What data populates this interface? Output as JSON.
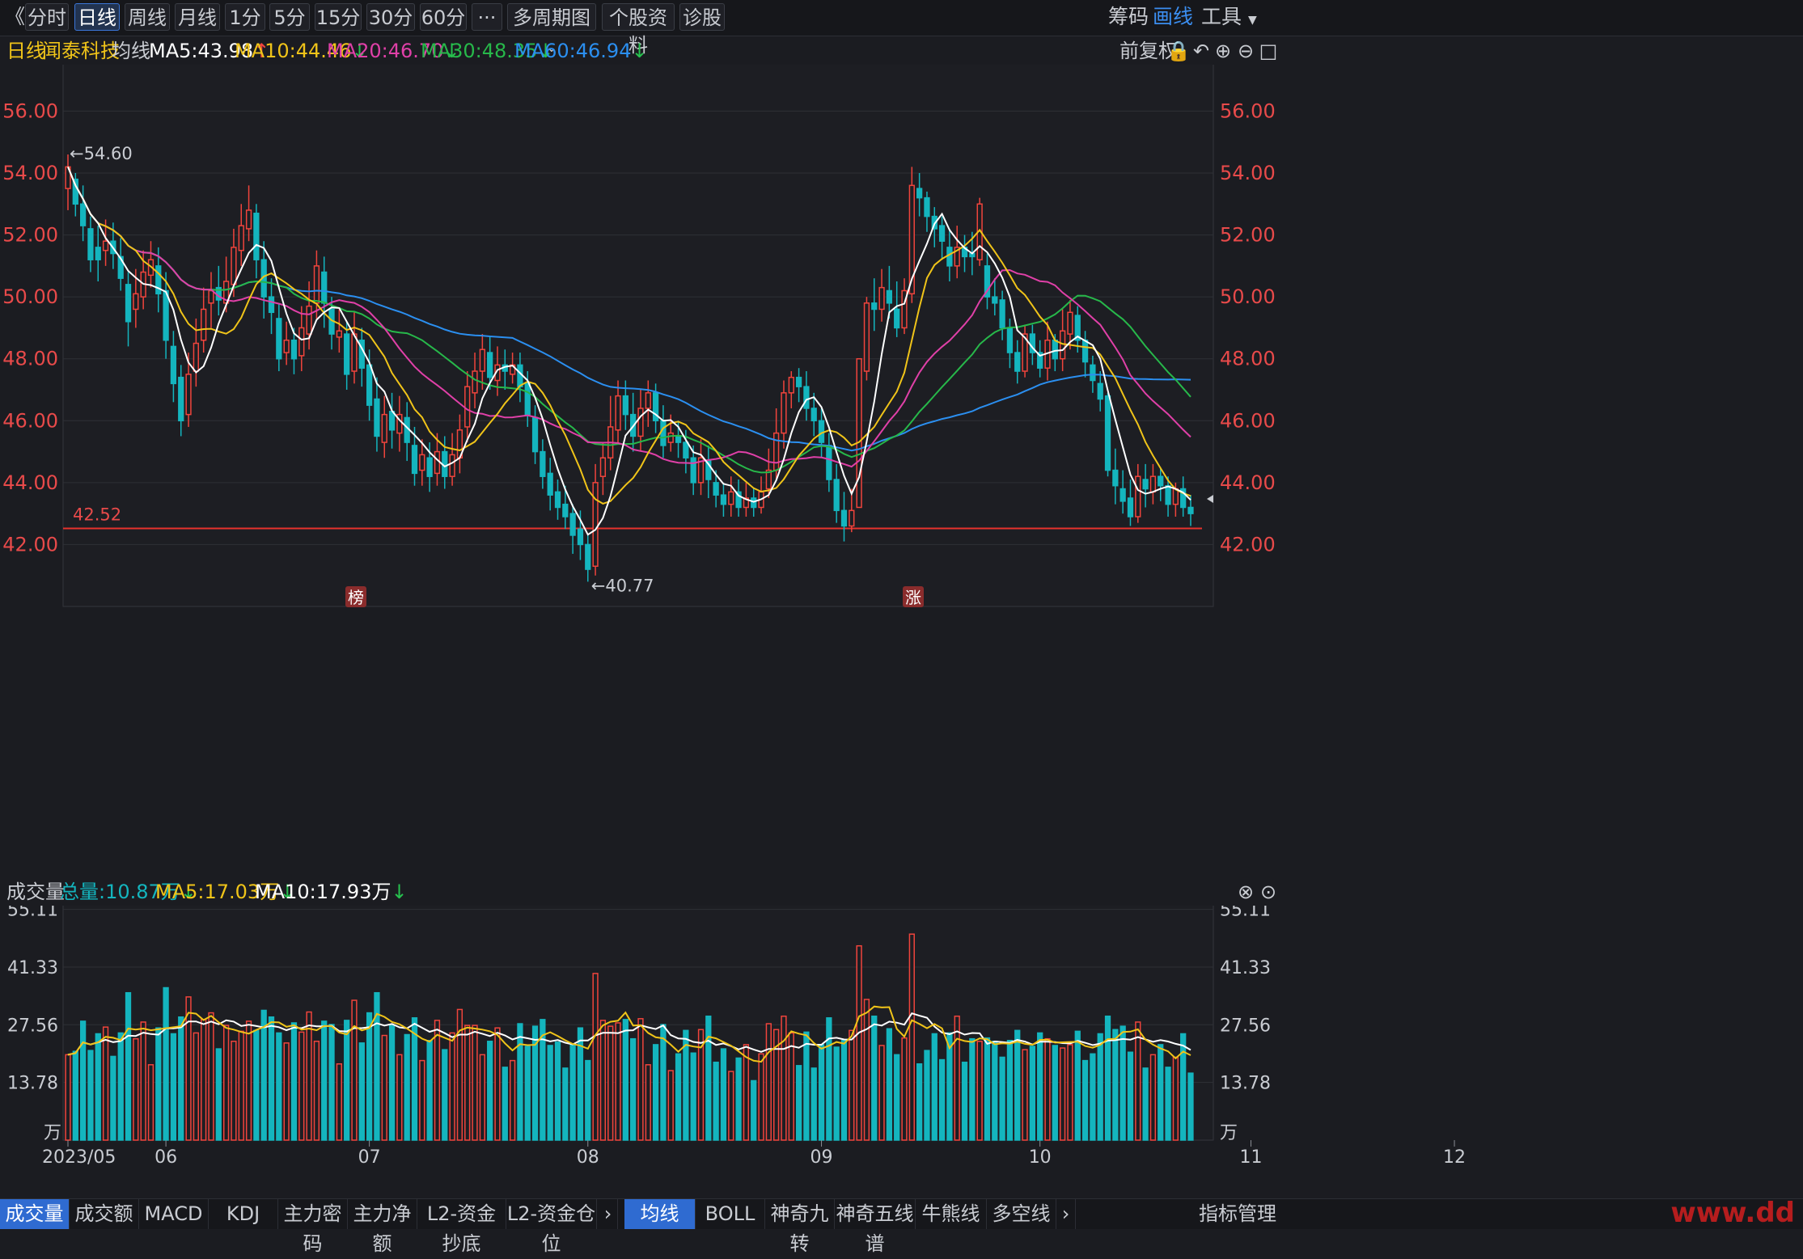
{
  "toolbar": {
    "back_glyph": "《",
    "periods": [
      "分时",
      "日线",
      "周线",
      "月线",
      "1分",
      "5分",
      "15分",
      "30分",
      "60分"
    ],
    "active_period": "日线",
    "more_glyph": "···",
    "multi_period": "多周期图",
    "stock_info": "个股资料",
    "diagnose": "诊股",
    "chips": "筹码",
    "draw": "画线",
    "tools": "工具"
  },
  "info": {
    "period": "日线",
    "stock_name": "闻泰科技",
    "ma_label": "均线",
    "ma5": "MA5:43.98",
    "ma10": "MA10:44.46",
    "ma20": "MA20:46.70",
    "ma30": "MA30:48.35",
    "ma60": "MA60:46.94",
    "adjust": "前复权"
  },
  "colors": {
    "up": "#f0443c",
    "down": "#14b5be",
    "ma5": "#ffffff",
    "ma10": "#f0c419",
    "ma20": "#e040a8",
    "ma30": "#27b84a",
    "ma60": "#2b8ff0",
    "grid": "#2e3036",
    "axis": "#e84a4a"
  },
  "chart_data": {
    "type": "candlestick",
    "ylim": [
      40,
      57.5
    ],
    "y_ticks": [
      "56.00",
      "54.00",
      "52.00",
      "50.00",
      "48.00",
      "46.00",
      "44.00",
      "42.00"
    ],
    "x_ticks": [
      "2023/05",
      "06",
      "07",
      "08",
      "09",
      "10",
      "11",
      "12"
    ],
    "annotations": {
      "high": "←54.60",
      "low": "←40.77",
      "support_label": "42.52",
      "support_value": 42.52,
      "tag_list": "榜",
      "tag_limit": "涨"
    },
    "candles": [
      [
        53.5,
        54.2,
        54.6,
        52.8
      ],
      [
        53.8,
        53.0,
        54.0,
        52.6
      ],
      [
        53.0,
        52.3,
        53.6,
        51.8
      ],
      [
        52.2,
        51.2,
        52.6,
        50.8
      ],
      [
        51.6,
        51.2,
        52.3,
        50.5
      ],
      [
        51.5,
        51.8,
        52.5,
        51.0
      ],
      [
        51.8,
        51.4,
        52.4,
        50.9
      ],
      [
        51.3,
        50.6,
        51.9,
        50.2
      ],
      [
        50.4,
        49.2,
        50.8,
        48.4
      ],
      [
        49.6,
        50.1,
        50.9,
        49.0
      ],
      [
        50.0,
        50.8,
        51.5,
        49.6
      ],
      [
        50.7,
        51.2,
        51.8,
        50.3
      ],
      [
        51.0,
        50.1,
        51.6,
        49.5
      ],
      [
        50.2,
        48.6,
        50.8,
        48.0
      ],
      [
        48.4,
        47.2,
        48.9,
        46.6
      ],
      [
        47.4,
        46.0,
        47.8,
        45.5
      ],
      [
        46.2,
        47.5,
        48.2,
        45.8
      ],
      [
        47.6,
        48.5,
        49.3,
        47.1
      ],
      [
        48.6,
        49.6,
        50.3,
        48.2
      ],
      [
        49.8,
        50.2,
        50.8,
        49.0
      ],
      [
        50.3,
        49.9,
        51.0,
        49.4
      ],
      [
        49.8,
        50.5,
        51.3,
        49.5
      ],
      [
        50.4,
        51.6,
        52.2,
        50.0
      ],
      [
        51.5,
        52.3,
        53.0,
        51.0
      ],
      [
        52.2,
        52.8,
        53.6,
        51.8
      ],
      [
        52.7,
        51.2,
        53.0,
        50.6
      ],
      [
        51.2,
        50.0,
        51.8,
        49.3
      ],
      [
        50.0,
        49.5,
        50.6,
        48.8
      ],
      [
        49.3,
        48.0,
        49.8,
        47.6
      ],
      [
        48.2,
        48.6,
        49.2,
        47.8
      ],
      [
        48.6,
        48.0,
        49.0,
        47.5
      ],
      [
        48.1,
        49.0,
        49.7,
        47.6
      ],
      [
        48.8,
        49.7,
        50.5,
        48.3
      ],
      [
        49.8,
        51.0,
        51.5,
        49.3
      ],
      [
        50.8,
        49.8,
        51.3,
        49.0
      ],
      [
        49.6,
        48.8,
        50.0,
        48.3
      ],
      [
        48.7,
        48.9,
        49.6,
        48.2
      ],
      [
        48.8,
        47.5,
        49.2,
        47.0
      ],
      [
        47.6,
        48.8,
        49.5,
        47.2
      ],
      [
        48.6,
        47.7,
        49.0,
        47.1
      ],
      [
        47.8,
        46.5,
        48.3,
        46.0
      ],
      [
        46.7,
        45.5,
        47.4,
        45.0
      ],
      [
        45.3,
        46.2,
        46.8,
        44.8
      ],
      [
        46.3,
        45.7,
        46.9,
        45.1
      ],
      [
        45.6,
        46.2,
        46.8,
        45.0
      ],
      [
        46.1,
        45.3,
        46.6,
        44.7
      ],
      [
        45.2,
        44.3,
        45.8,
        43.9
      ],
      [
        44.4,
        44.9,
        45.4,
        43.9
      ],
      [
        44.8,
        44.2,
        45.3,
        43.7
      ],
      [
        44.3,
        45.0,
        45.6,
        43.9
      ],
      [
        45.0,
        44.2,
        45.5,
        43.8
      ],
      [
        44.2,
        44.9,
        45.6,
        43.9
      ],
      [
        44.8,
        45.7,
        46.2,
        44.3
      ],
      [
        45.8,
        47.1,
        47.6,
        45.3
      ],
      [
        46.9,
        47.6,
        48.2,
        46.4
      ],
      [
        47.6,
        48.3,
        48.8,
        47.0
      ],
      [
        48.2,
        47.4,
        48.7,
        47.0
      ],
      [
        47.3,
        47.8,
        48.4,
        46.8
      ],
      [
        47.8,
        47.6,
        48.3,
        47.0
      ],
      [
        47.5,
        47.8,
        48.2,
        47.2
      ],
      [
        47.8,
        47.1,
        48.2,
        46.6
      ],
      [
        47.2,
        46.2,
        47.6,
        45.8
      ],
      [
        46.1,
        45.0,
        46.5,
        44.6
      ],
      [
        45.0,
        44.2,
        45.4,
        43.8
      ],
      [
        44.3,
        43.6,
        44.8,
        43.1
      ],
      [
        43.7,
        43.2,
        44.1,
        42.8
      ],
      [
        43.3,
        42.9,
        43.9,
        42.5
      ],
      [
        43.0,
        42.3,
        43.3,
        41.7
      ],
      [
        42.5,
        42.0,
        43.1,
        41.5
      ],
      [
        42.0,
        41.2,
        42.3,
        40.8
      ],
      [
        41.3,
        44.0,
        44.6,
        41.0
      ],
      [
        44.2,
        44.8,
        45.3,
        43.6
      ],
      [
        44.8,
        45.8,
        46.8,
        44.4
      ],
      [
        45.7,
        46.8,
        47.3,
        45.3
      ],
      [
        46.8,
        46.2,
        47.3,
        45.7
      ],
      [
        46.2,
        45.5,
        46.9,
        45.0
      ],
      [
        45.5,
        46.4,
        47.0,
        45.0
      ],
      [
        46.4,
        46.9,
        47.3,
        45.8
      ],
      [
        46.9,
        46.0,
        47.2,
        45.6
      ],
      [
        46.0,
        45.2,
        46.5,
        44.8
      ],
      [
        45.3,
        45.6,
        46.2,
        45.0
      ],
      [
        45.5,
        45.3,
        46.0,
        44.8
      ],
      [
        45.3,
        44.8,
        45.7,
        44.3
      ],
      [
        44.8,
        44.0,
        45.2,
        43.6
      ],
      [
        44.0,
        44.8,
        45.4,
        43.6
      ],
      [
        44.7,
        44.1,
        45.2,
        43.5
      ],
      [
        44.0,
        43.6,
        44.4,
        43.2
      ],
      [
        43.6,
        43.3,
        44.0,
        42.9
      ],
      [
        43.3,
        43.7,
        44.2,
        42.9
      ],
      [
        43.7,
        43.2,
        44.1,
        42.9
      ],
      [
        43.2,
        43.5,
        44.0,
        42.9
      ],
      [
        43.5,
        43.2,
        43.8,
        42.9
      ],
      [
        43.2,
        43.7,
        44.2,
        43.0
      ],
      [
        43.8,
        44.4,
        45.1,
        43.5
      ],
      [
        44.4,
        45.6,
        46.4,
        44.1
      ],
      [
        45.6,
        46.9,
        47.3,
        45.1
      ],
      [
        46.9,
        47.4,
        47.6,
        46.4
      ],
      [
        47.4,
        47.1,
        47.7,
        46.6
      ],
      [
        47.1,
        46.4,
        47.6,
        46.0
      ],
      [
        46.4,
        46.0,
        46.9,
        45.5
      ],
      [
        46.0,
        45.3,
        46.4,
        44.8
      ],
      [
        45.2,
        44.1,
        45.6,
        43.7
      ],
      [
        44.1,
        43.1,
        44.6,
        42.7
      ],
      [
        43.1,
        42.6,
        43.7,
        42.1
      ],
      [
        42.6,
        43.1,
        43.8,
        42.4
      ],
      [
        43.2,
        48.0,
        48.0,
        43.2
      ],
      [
        47.6,
        49.8,
        50.0,
        47.3
      ],
      [
        49.8,
        49.6,
        50.6,
        48.9
      ],
      [
        49.6,
        50.3,
        50.9,
        49.2
      ],
      [
        50.2,
        49.8,
        51.0,
        49.3
      ],
      [
        49.6,
        49.0,
        50.5,
        48.7
      ],
      [
        49.0,
        50.2,
        50.6,
        48.8
      ],
      [
        50.1,
        53.6,
        54.2,
        49.8
      ],
      [
        53.5,
        53.2,
        54.0,
        52.6
      ],
      [
        53.2,
        52.6,
        53.4,
        52.1
      ],
      [
        52.6,
        52.2,
        52.9,
        51.6
      ],
      [
        52.3,
        51.8,
        52.6,
        51.2
      ],
      [
        51.6,
        51.0,
        52.2,
        50.5
      ],
      [
        51.0,
        51.6,
        52.3,
        50.6
      ],
      [
        51.6,
        51.3,
        52.0,
        50.8
      ],
      [
        51.4,
        51.3,
        52.1,
        50.7
      ],
      [
        51.2,
        53.0,
        53.2,
        51.0
      ],
      [
        51.0,
        50.0,
        51.4,
        49.6
      ],
      [
        50.0,
        49.8,
        50.6,
        49.4
      ],
      [
        49.9,
        49.0,
        50.2,
        48.6
      ],
      [
        49.0,
        48.2,
        49.3,
        47.7
      ],
      [
        48.2,
        47.6,
        48.6,
        47.2
      ],
      [
        47.6,
        48.8,
        49.1,
        47.4
      ],
      [
        48.8,
        48.2,
        49.1,
        47.8
      ],
      [
        48.2,
        47.7,
        48.6,
        47.4
      ],
      [
        47.7,
        48.6,
        49.2,
        47.3
      ],
      [
        48.6,
        48.0,
        48.8,
        47.6
      ],
      [
        48.0,
        48.9,
        49.6,
        47.6
      ],
      [
        48.8,
        49.5,
        49.9,
        48.3
      ],
      [
        49.4,
        48.6,
        49.7,
        48.2
      ],
      [
        48.6,
        47.9,
        48.9,
        47.4
      ],
      [
        47.8,
        47.3,
        48.1,
        46.9
      ],
      [
        47.2,
        46.7,
        47.6,
        46.3
      ],
      [
        46.8,
        44.4,
        46.9,
        44.2
      ],
      [
        44.4,
        43.9,
        45.1,
        43.3
      ],
      [
        43.8,
        43.4,
        44.4,
        43.0
      ],
      [
        43.5,
        42.9,
        44.1,
        42.6
      ],
      [
        42.9,
        44.2,
        44.6,
        42.7
      ],
      [
        44.1,
        43.8,
        44.6,
        43.2
      ],
      [
        43.7,
        44.2,
        44.6,
        43.3
      ],
      [
        44.2,
        43.9,
        44.5,
        43.4
      ],
      [
        43.9,
        43.3,
        44.2,
        42.9
      ],
      [
        43.3,
        43.8,
        44.0,
        42.9
      ],
      [
        43.8,
        43.2,
        44.2,
        42.9
      ],
      [
        43.2,
        43.0,
        43.6,
        42.6
      ]
    ],
    "volume": {
      "y_ticks": [
        "55.11",
        "41.33",
        "27.56",
        "13.78"
      ],
      "unit": "万",
      "total": "总量:10.87万",
      "ma5": "MA5:17.03万",
      "ma10": "MA10:17.93万",
      "label": "成交量",
      "ylim": [
        0,
        56
      ]
    }
  },
  "bottom_tabs": [
    "成交量",
    "成交额",
    "MACD",
    "KDJ",
    "主力密码",
    "主力净额",
    "L2-资金抄底",
    "L2-资金仓位"
  ],
  "bottom_tabs_right": [
    "均线",
    "BOLL",
    "神奇九转",
    "神奇五线谱",
    "牛熊线",
    "多空线"
  ],
  "bottom_mgr": "指标管理",
  "watermark": "www.dd"
}
